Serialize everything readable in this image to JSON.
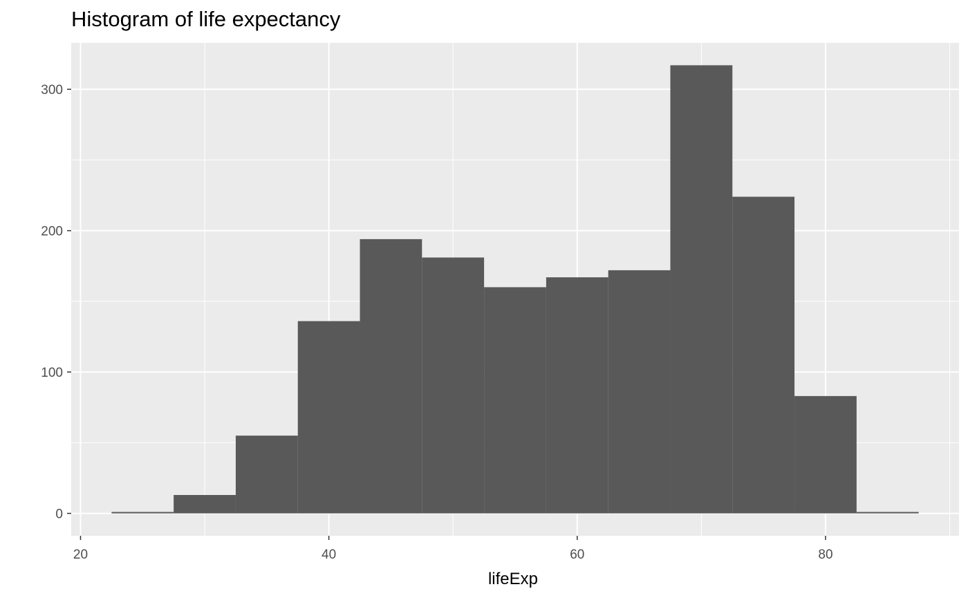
{
  "chart_data": {
    "type": "bar",
    "subtype": "histogram",
    "title": "Histogram of life expectancy",
    "xlabel": "lifeExp",
    "ylabel": "",
    "bin_width": 5,
    "bins": [
      {
        "x_start": 22.5,
        "x_end": 27.5,
        "count": 1
      },
      {
        "x_start": 27.5,
        "x_end": 32.5,
        "count": 13
      },
      {
        "x_start": 32.5,
        "x_end": 37.5,
        "count": 55
      },
      {
        "x_start": 37.5,
        "x_end": 42.5,
        "count": 136
      },
      {
        "x_start": 42.5,
        "x_end": 47.5,
        "count": 194
      },
      {
        "x_start": 47.5,
        "x_end": 52.5,
        "count": 181
      },
      {
        "x_start": 52.5,
        "x_end": 57.5,
        "count": 160
      },
      {
        "x_start": 57.5,
        "x_end": 62.5,
        "count": 167
      },
      {
        "x_start": 62.5,
        "x_end": 67.5,
        "count": 172
      },
      {
        "x_start": 67.5,
        "x_end": 72.5,
        "count": 317
      },
      {
        "x_start": 72.5,
        "x_end": 77.5,
        "count": 224
      },
      {
        "x_start": 77.5,
        "x_end": 82.5,
        "count": 83
      },
      {
        "x_start": 82.5,
        "x_end": 87.5,
        "count": 1
      }
    ],
    "xlim": [
      19.25,
      90.75
    ],
    "ylim": [
      -15.85,
      332.85
    ],
    "x_ticks": [
      20,
      40,
      60,
      80
    ],
    "y_ticks": [
      0,
      100,
      200,
      300
    ],
    "x_minor_ticks": [
      30,
      50,
      70,
      90
    ],
    "y_minor_ticks": [
      50,
      150,
      250
    ],
    "grid": true,
    "legend": "none",
    "colors": {
      "bar_fill": "#595959",
      "panel_background": "#EBEBEB",
      "grid_major": "#FFFFFF",
      "axis_text": "#4D4D4D",
      "tick_mark": "#333333"
    }
  }
}
